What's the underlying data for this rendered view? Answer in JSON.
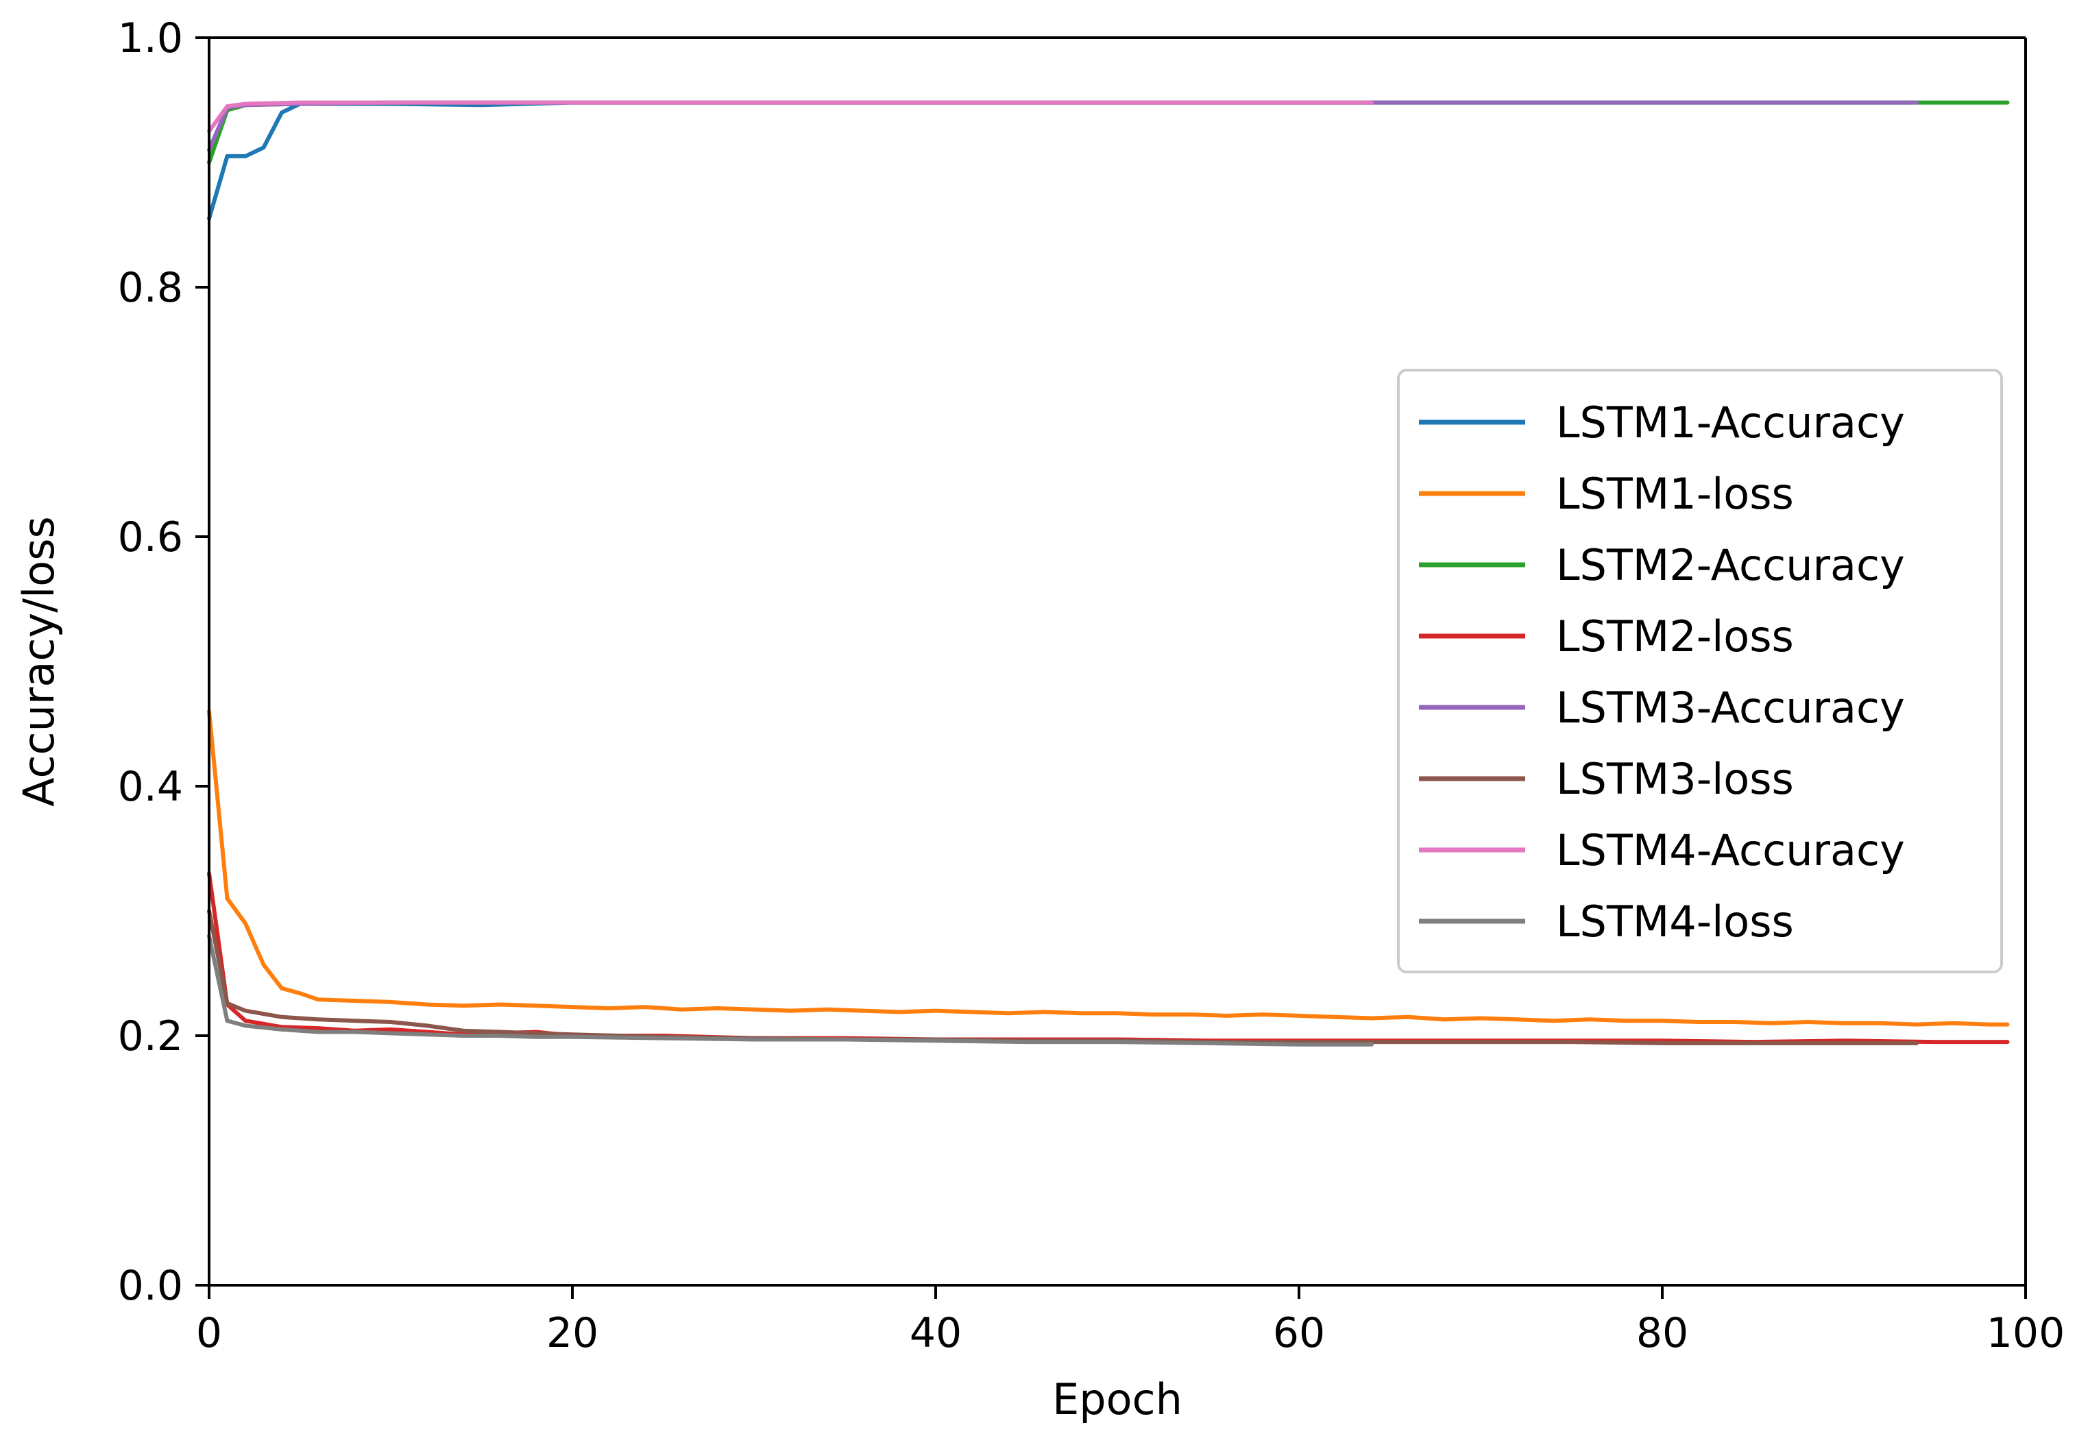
{
  "chart_data": {
    "type": "line",
    "title": "",
    "xlabel": "Epoch",
    "ylabel": "Accuracy/loss",
    "xlim": [
      0,
      100
    ],
    "ylim": [
      0,
      1.0
    ],
    "x_ticks": [
      0,
      20,
      40,
      60,
      80,
      100
    ],
    "x_tick_labels": [
      "0",
      "20",
      "40",
      "60",
      "80",
      "100"
    ],
    "y_ticks": [
      0,
      0.2,
      0.4,
      0.6,
      0.8,
      1.0
    ],
    "y_tick_labels": [
      "0.0",
      "0.2",
      "0.4",
      "0.6",
      "0.8",
      "1.0"
    ],
    "grid": false,
    "legend_position": "center-right",
    "series": [
      {
        "name": "LSTM1-Accuracy",
        "color": "#1f77b4",
        "points": [
          [
            0,
            0.855
          ],
          [
            1,
            0.905
          ],
          [
            2,
            0.905
          ],
          [
            3,
            0.912
          ],
          [
            4,
            0.94
          ],
          [
            5,
            0.947
          ],
          [
            10,
            0.947
          ],
          [
            15,
            0.946
          ],
          [
            20,
            0.948
          ],
          [
            30,
            0.948
          ],
          [
            40,
            0.948
          ],
          [
            50,
            0.948
          ],
          [
            60,
            0.948
          ],
          [
            64,
            0.948
          ]
        ]
      },
      {
        "name": "LSTM1-loss",
        "color": "#ff7f0e",
        "points": [
          [
            0,
            0.46
          ],
          [
            1,
            0.31
          ],
          [
            2,
            0.29
          ],
          [
            3,
            0.257
          ],
          [
            4,
            0.238
          ],
          [
            5,
            0.234
          ],
          [
            6,
            0.229
          ],
          [
            8,
            0.228
          ],
          [
            10,
            0.227
          ],
          [
            12,
            0.225
          ],
          [
            14,
            0.224
          ],
          [
            16,
            0.225
          ],
          [
            18,
            0.224
          ],
          [
            20,
            0.223
          ],
          [
            22,
            0.222
          ],
          [
            24,
            0.223
          ],
          [
            26,
            0.221
          ],
          [
            28,
            0.222
          ],
          [
            30,
            0.221
          ],
          [
            32,
            0.22
          ],
          [
            34,
            0.221
          ],
          [
            36,
            0.22
          ],
          [
            38,
            0.219
          ],
          [
            40,
            0.22
          ],
          [
            42,
            0.219
          ],
          [
            44,
            0.218
          ],
          [
            46,
            0.219
          ],
          [
            48,
            0.218
          ],
          [
            50,
            0.218
          ],
          [
            52,
            0.217
          ],
          [
            54,
            0.217
          ],
          [
            56,
            0.216
          ],
          [
            58,
            0.217
          ],
          [
            60,
            0.216
          ],
          [
            62,
            0.215
          ],
          [
            64,
            0.214
          ],
          [
            66,
            0.215
          ],
          [
            68,
            0.213
          ],
          [
            70,
            0.214
          ],
          [
            72,
            0.213
          ],
          [
            74,
            0.212
          ],
          [
            76,
            0.213
          ],
          [
            78,
            0.212
          ],
          [
            80,
            0.212
          ],
          [
            82,
            0.211
          ],
          [
            84,
            0.211
          ],
          [
            86,
            0.21
          ],
          [
            88,
            0.211
          ],
          [
            90,
            0.21
          ],
          [
            92,
            0.21
          ],
          [
            94,
            0.209
          ],
          [
            96,
            0.21
          ],
          [
            98,
            0.209
          ],
          [
            99,
            0.209
          ]
        ]
      },
      {
        "name": "LSTM2-Accuracy",
        "color": "#2ca02c",
        "points": [
          [
            0,
            0.9
          ],
          [
            1,
            0.942
          ],
          [
            2,
            0.946
          ],
          [
            5,
            0.947
          ],
          [
            10,
            0.948
          ],
          [
            20,
            0.948
          ],
          [
            40,
            0.948
          ],
          [
            60,
            0.948
          ],
          [
            80,
            0.948
          ],
          [
            99,
            0.948
          ]
        ]
      },
      {
        "name": "LSTM2-loss",
        "color": "#d62728",
        "points": [
          [
            0,
            0.33
          ],
          [
            1,
            0.225
          ],
          [
            2,
            0.212
          ],
          [
            4,
            0.207
          ],
          [
            6,
            0.206
          ],
          [
            8,
            0.204
          ],
          [
            10,
            0.205
          ],
          [
            12,
            0.203
          ],
          [
            14,
            0.201
          ],
          [
            16,
            0.202
          ],
          [
            18,
            0.203
          ],
          [
            20,
            0.2
          ],
          [
            25,
            0.2
          ],
          [
            30,
            0.198
          ],
          [
            35,
            0.198
          ],
          [
            40,
            0.197
          ],
          [
            45,
            0.197
          ],
          [
            50,
            0.197
          ],
          [
            55,
            0.196
          ],
          [
            60,
            0.196
          ],
          [
            65,
            0.196
          ],
          [
            70,
            0.196
          ],
          [
            75,
            0.196
          ],
          [
            80,
            0.196
          ],
          [
            85,
            0.195
          ],
          [
            90,
            0.196
          ],
          [
            95,
            0.195
          ],
          [
            99,
            0.195
          ]
        ]
      },
      {
        "name": "LSTM3-Accuracy",
        "color": "#9467bd",
        "points": [
          [
            0,
            0.91
          ],
          [
            1,
            0.944
          ],
          [
            2,
            0.946
          ],
          [
            5,
            0.947
          ],
          [
            10,
            0.948
          ],
          [
            20,
            0.948
          ],
          [
            40,
            0.948
          ],
          [
            60,
            0.948
          ],
          [
            80,
            0.948
          ],
          [
            94,
            0.948
          ]
        ]
      },
      {
        "name": "LSTM3-loss",
        "color": "#8c564b",
        "points": [
          [
            0,
            0.3
          ],
          [
            1,
            0.226
          ],
          [
            2,
            0.22
          ],
          [
            4,
            0.215
          ],
          [
            6,
            0.213
          ],
          [
            8,
            0.212
          ],
          [
            10,
            0.211
          ],
          [
            12,
            0.208
          ],
          [
            14,
            0.204
          ],
          [
            16,
            0.203
          ],
          [
            18,
            0.202
          ],
          [
            20,
            0.201
          ],
          [
            25,
            0.199
          ],
          [
            30,
            0.198
          ],
          [
            35,
            0.197
          ],
          [
            40,
            0.197
          ],
          [
            45,
            0.196
          ],
          [
            50,
            0.196
          ],
          [
            55,
            0.195
          ],
          [
            60,
            0.195
          ],
          [
            65,
            0.195
          ],
          [
            70,
            0.195
          ],
          [
            75,
            0.195
          ],
          [
            80,
            0.194
          ],
          [
            85,
            0.194
          ],
          [
            90,
            0.194
          ],
          [
            94,
            0.194
          ]
        ]
      },
      {
        "name": "LSTM4-Accuracy",
        "color": "#e377c2",
        "points": [
          [
            0,
            0.925
          ],
          [
            1,
            0.945
          ],
          [
            2,
            0.947
          ],
          [
            5,
            0.948
          ],
          [
            10,
            0.948
          ],
          [
            20,
            0.948
          ],
          [
            40,
            0.948
          ],
          [
            50,
            0.948
          ],
          [
            64,
            0.948
          ]
        ]
      },
      {
        "name": "LSTM4-loss",
        "color": "#7f7f7f",
        "points": [
          [
            0,
            0.28
          ],
          [
            1,
            0.212
          ],
          [
            2,
            0.208
          ],
          [
            4,
            0.205
          ],
          [
            6,
            0.203
          ],
          [
            8,
            0.203
          ],
          [
            10,
            0.202
          ],
          [
            12,
            0.201
          ],
          [
            14,
            0.2
          ],
          [
            16,
            0.2
          ],
          [
            18,
            0.199
          ],
          [
            20,
            0.199
          ],
          [
            25,
            0.198
          ],
          [
            30,
            0.197
          ],
          [
            35,
            0.197
          ],
          [
            40,
            0.196
          ],
          [
            45,
            0.195
          ],
          [
            50,
            0.195
          ],
          [
            55,
            0.194
          ],
          [
            60,
            0.193
          ],
          [
            64,
            0.193
          ]
        ]
      }
    ]
  }
}
